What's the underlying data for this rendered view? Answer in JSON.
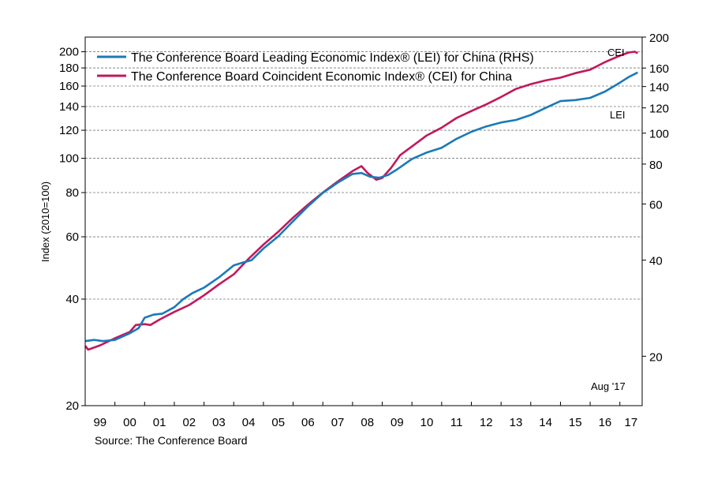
{
  "chart_data": {
    "type": "line",
    "ylabel": "Index (2010=100)",
    "legend": [
      {
        "label": "The Conference Board Leading Economic Index® (LEI) for China (RHS)",
        "color": "#1a7ab8"
      },
      {
        "label": "The Conference Board Coincident Economic Index® (CEI) for China",
        "color": "#c2185b"
      }
    ],
    "legend_position": "top-left",
    "annotations": {
      "cei": "CEI",
      "lei": "LEI",
      "date": "Aug '17"
    },
    "x_ticks": [
      "99",
      "00",
      "01",
      "02",
      "03",
      "04",
      "05",
      "06",
      "07",
      "08",
      "09",
      "10",
      "11",
      "12",
      "13",
      "14",
      "15",
      "16",
      "17"
    ],
    "x_range": [
      1999.0,
      2017.75
    ],
    "y_left": {
      "scale": "log",
      "range": [
        20,
        220
      ],
      "ticks": [
        20,
        40,
        60,
        80,
        100,
        120,
        140,
        160,
        180,
        200
      ],
      "grid": true
    },
    "y_right": {
      "scale": "log",
      "range": [
        14,
        200
      ],
      "ticks": [
        20,
        40,
        60,
        80,
        100,
        120,
        140,
        160,
        200
      ]
    },
    "series": [
      {
        "name": "The Conference Board Coincident Economic Index® (CEI) for China",
        "axis": "left",
        "color": "#c2185b",
        "points": [
          [
            1999.0,
            29.5
          ],
          [
            1999.1,
            28.8
          ],
          [
            1999.5,
            29.6
          ],
          [
            2000.0,
            31.0
          ],
          [
            2000.5,
            32.3
          ],
          [
            2000.7,
            33.8
          ],
          [
            2001.0,
            34.0
          ],
          [
            2001.2,
            33.8
          ],
          [
            2001.5,
            35.0
          ],
          [
            2002.0,
            36.8
          ],
          [
            2002.5,
            38.5
          ],
          [
            2003.0,
            41.0
          ],
          [
            2003.5,
            44.0
          ],
          [
            2004.0,
            47.0
          ],
          [
            2004.5,
            52.0
          ],
          [
            2005.0,
            57.0
          ],
          [
            2005.5,
            62.0
          ],
          [
            2006.0,
            68.0
          ],
          [
            2006.5,
            74.0
          ],
          [
            2007.0,
            80.0
          ],
          [
            2007.5,
            86.0
          ],
          [
            2008.0,
            92.0
          ],
          [
            2008.3,
            95.0
          ],
          [
            2008.5,
            91.0
          ],
          [
            2008.8,
            87.0
          ],
          [
            2009.0,
            88.0
          ],
          [
            2009.3,
            94.0
          ],
          [
            2009.6,
            102.0
          ],
          [
            2010.0,
            108.0
          ],
          [
            2010.5,
            116.0
          ],
          [
            2011.0,
            122.0
          ],
          [
            2011.5,
            130.0
          ],
          [
            2012.0,
            136.0
          ],
          [
            2012.5,
            142.0
          ],
          [
            2013.0,
            149.0
          ],
          [
            2013.5,
            157.0
          ],
          [
            2014.0,
            162.0
          ],
          [
            2014.5,
            166.0
          ],
          [
            2015.0,
            169.0
          ],
          [
            2015.5,
            174.0
          ],
          [
            2016.0,
            178.0
          ],
          [
            2016.5,
            187.0
          ],
          [
            2017.0,
            195.0
          ],
          [
            2017.3,
            199.0
          ],
          [
            2017.5,
            200.0
          ],
          [
            2017.6,
            198.0
          ]
        ]
      },
      {
        "name": "The Conference Board Leading Economic Index® (LEI) for China (RHS)",
        "axis": "right",
        "color": "#1a7ab8",
        "points": [
          [
            1999.0,
            22.3
          ],
          [
            1999.3,
            22.5
          ],
          [
            1999.6,
            22.3
          ],
          [
            2000.0,
            22.5
          ],
          [
            2000.5,
            23.6
          ],
          [
            2000.8,
            24.5
          ],
          [
            2001.0,
            26.4
          ],
          [
            2001.3,
            27.0
          ],
          [
            2001.6,
            27.2
          ],
          [
            2002.0,
            28.5
          ],
          [
            2002.3,
            30.2
          ],
          [
            2002.6,
            31.5
          ],
          [
            2003.0,
            32.8
          ],
          [
            2003.5,
            35.3
          ],
          [
            2004.0,
            38.5
          ],
          [
            2004.3,
            39.3
          ],
          [
            2004.6,
            40.0
          ],
          [
            2005.0,
            43.5
          ],
          [
            2005.5,
            47.5
          ],
          [
            2006.0,
            53.0
          ],
          [
            2006.5,
            59.0
          ],
          [
            2007.0,
            65.0
          ],
          [
            2007.5,
            70.0
          ],
          [
            2008.0,
            74.5
          ],
          [
            2008.3,
            75.0
          ],
          [
            2008.6,
            73.0
          ],
          [
            2008.9,
            72.5
          ],
          [
            2009.2,
            74.0
          ],
          [
            2009.5,
            77.0
          ],
          [
            2010.0,
            83.0
          ],
          [
            2010.5,
            87.0
          ],
          [
            2011.0,
            90.0
          ],
          [
            2011.5,
            96.0
          ],
          [
            2012.0,
            101.0
          ],
          [
            2012.5,
            105.0
          ],
          [
            2013.0,
            108.0
          ],
          [
            2013.5,
            110.0
          ],
          [
            2014.0,
            114.0
          ],
          [
            2014.5,
            120.0
          ],
          [
            2015.0,
            126.0
          ],
          [
            2015.5,
            127.0
          ],
          [
            2016.0,
            129.0
          ],
          [
            2016.5,
            135.0
          ],
          [
            2017.0,
            144.0
          ],
          [
            2017.3,
            150.0
          ],
          [
            2017.6,
            155.0
          ]
        ]
      }
    ]
  },
  "source": "Source: The Conference Board"
}
